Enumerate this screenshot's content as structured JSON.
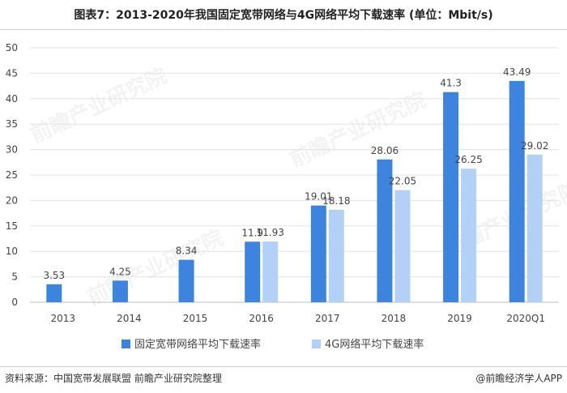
{
  "title": "图表7：2013-2020年我国固定宽带网络与4G网络平均下载速率 (单位：Mbit/s)",
  "source": "资料来源：中国宽带发展联盟 前瞻产业研究院整理",
  "brand": "@前瞻经济学人APP",
  "watermark": "前瞻产业研究院",
  "colors": {
    "fixed": "#3c84de",
    "mobile": "#b3d1f7",
    "grid": "#e3e3e3",
    "axis": "#bdbdbd"
  },
  "chart_data": {
    "type": "bar",
    "categories": [
      "2013",
      "2014",
      "2015",
      "2016",
      "2017",
      "2018",
      "2019",
      "2020Q1"
    ],
    "series": [
      {
        "name": "固定宽带网络平均下载速率",
        "values": [
          3.53,
          4.25,
          8.34,
          11.9,
          19.01,
          28.06,
          41.3,
          43.49
        ]
      },
      {
        "name": "4G网络平均下载速率",
        "values": [
          null,
          null,
          null,
          11.93,
          18.18,
          22.05,
          26.25,
          29.02
        ]
      }
    ],
    "ylim": [
      0,
      50
    ],
    "yticks": [
      "0",
      "5",
      "10",
      "15",
      "20",
      "25",
      "30",
      "35",
      "40",
      "45",
      "50"
    ],
    "grid": true,
    "legend": "bottom"
  }
}
